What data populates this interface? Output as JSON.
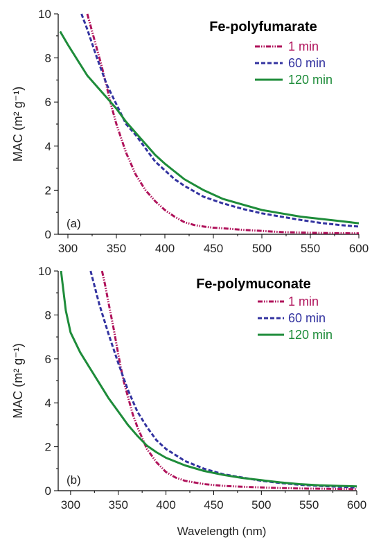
{
  "figure": {
    "xlabel": "Wavelength (nm)"
  },
  "chart_data": [
    {
      "type": "line",
      "panel_label": "(a)",
      "title": "Fe-polyfumarate",
      "xlabel": "",
      "ylabel": "MAC (m² g⁻¹)",
      "xlim": [
        290,
        600
      ],
      "ylim": [
        0,
        10
      ],
      "xticks": [
        300,
        350,
        400,
        450,
        500,
        550,
        600
      ],
      "yticks": [
        0,
        2,
        4,
        6,
        8,
        10
      ],
      "legend_position": "top-right",
      "series": [
        {
          "name": "1 min",
          "color": "#b0135b",
          "dash": "dash-dot-dot",
          "x": [
            320,
            325,
            330,
            335,
            340,
            345,
            350,
            360,
            370,
            380,
            390,
            400,
            410,
            420,
            430,
            440,
            450,
            460,
            480,
            500,
            520,
            540,
            560,
            580,
            600
          ],
          "y": [
            10.0,
            9.2,
            8.4,
            7.6,
            6.7,
            5.8,
            5.0,
            3.7,
            2.7,
            2.0,
            1.5,
            1.1,
            0.8,
            0.55,
            0.42,
            0.35,
            0.3,
            0.27,
            0.2,
            0.15,
            0.1,
            0.08,
            0.06,
            0.05,
            0.04
          ]
        },
        {
          "name": "60 min",
          "color": "#3333a0",
          "dash": "dash",
          "x": [
            314,
            320,
            330,
            340,
            350,
            360,
            370,
            380,
            390,
            400,
            410,
            420,
            440,
            460,
            480,
            500,
            520,
            540,
            560,
            580,
            600
          ],
          "y": [
            10.0,
            9.3,
            8.0,
            6.8,
            5.9,
            5.0,
            4.5,
            3.9,
            3.3,
            2.9,
            2.5,
            2.2,
            1.7,
            1.4,
            1.15,
            0.95,
            0.8,
            0.65,
            0.52,
            0.42,
            0.35
          ]
        },
        {
          "name": "120 min",
          "color": "#1e8c3a",
          "dash": "solid",
          "x": [
            292,
            300,
            310,
            320,
            330,
            340,
            350,
            360,
            370,
            380,
            390,
            400,
            420,
            440,
            460,
            480,
            500,
            520,
            540,
            560,
            580,
            600
          ],
          "y": [
            9.2,
            8.6,
            7.9,
            7.2,
            6.7,
            6.2,
            5.7,
            5.1,
            4.6,
            4.1,
            3.6,
            3.2,
            2.5,
            2.0,
            1.6,
            1.35,
            1.1,
            0.95,
            0.8,
            0.7,
            0.6,
            0.5
          ]
        }
      ]
    },
    {
      "type": "line",
      "panel_label": "(b)",
      "title": "Fe-polymuconate",
      "xlabel": "Wavelength (nm)",
      "ylabel": "MAC (m² g⁻¹)",
      "xlim": [
        287,
        600
      ],
      "ylim": [
        0,
        10
      ],
      "xticks": [
        300,
        350,
        400,
        450,
        500,
        550,
        600
      ],
      "yticks": [
        0,
        2,
        4,
        6,
        8,
        10
      ],
      "legend_position": "top-right",
      "series": [
        {
          "name": "1 min",
          "color": "#b0135b",
          "dash": "dash-dot-dot",
          "x": [
            333,
            336,
            340,
            345,
            350,
            355,
            360,
            365,
            370,
            375,
            380,
            390,
            400,
            410,
            420,
            440,
            460,
            480,
            500,
            520,
            540,
            560,
            580,
            600
          ],
          "y": [
            10.0,
            9.4,
            8.5,
            7.4,
            6.2,
            5.1,
            4.3,
            3.5,
            2.9,
            2.4,
            1.9,
            1.3,
            0.85,
            0.6,
            0.45,
            0.3,
            0.22,
            0.18,
            0.15,
            0.12,
            0.1,
            0.09,
            0.08,
            0.07
          ]
        },
        {
          "name": "60 min",
          "color": "#3333a0",
          "dash": "dash",
          "x": [
            321,
            330,
            340,
            350,
            360,
            370,
            380,
            390,
            400,
            420,
            440,
            460,
            480,
            500,
            520,
            540,
            560,
            580,
            600
          ],
          "y": [
            10.0,
            8.5,
            7.1,
            5.8,
            4.6,
            3.6,
            2.9,
            2.3,
            1.9,
            1.35,
            1.0,
            0.75,
            0.6,
            0.45,
            0.35,
            0.27,
            0.22,
            0.18,
            0.15
          ]
        },
        {
          "name": "120 min",
          "color": "#1e8c3a",
          "dash": "solid",
          "x": [
            290,
            295,
            300,
            310,
            320,
            330,
            340,
            350,
            360,
            370,
            380,
            390,
            400,
            420,
            440,
            460,
            480,
            500,
            520,
            540,
            560,
            580,
            600
          ],
          "y": [
            10.0,
            8.2,
            7.2,
            6.3,
            5.6,
            4.9,
            4.2,
            3.6,
            3.0,
            2.5,
            2.05,
            1.75,
            1.5,
            1.15,
            0.9,
            0.72,
            0.58,
            0.48,
            0.38,
            0.3,
            0.25,
            0.22,
            0.2
          ]
        }
      ]
    }
  ]
}
